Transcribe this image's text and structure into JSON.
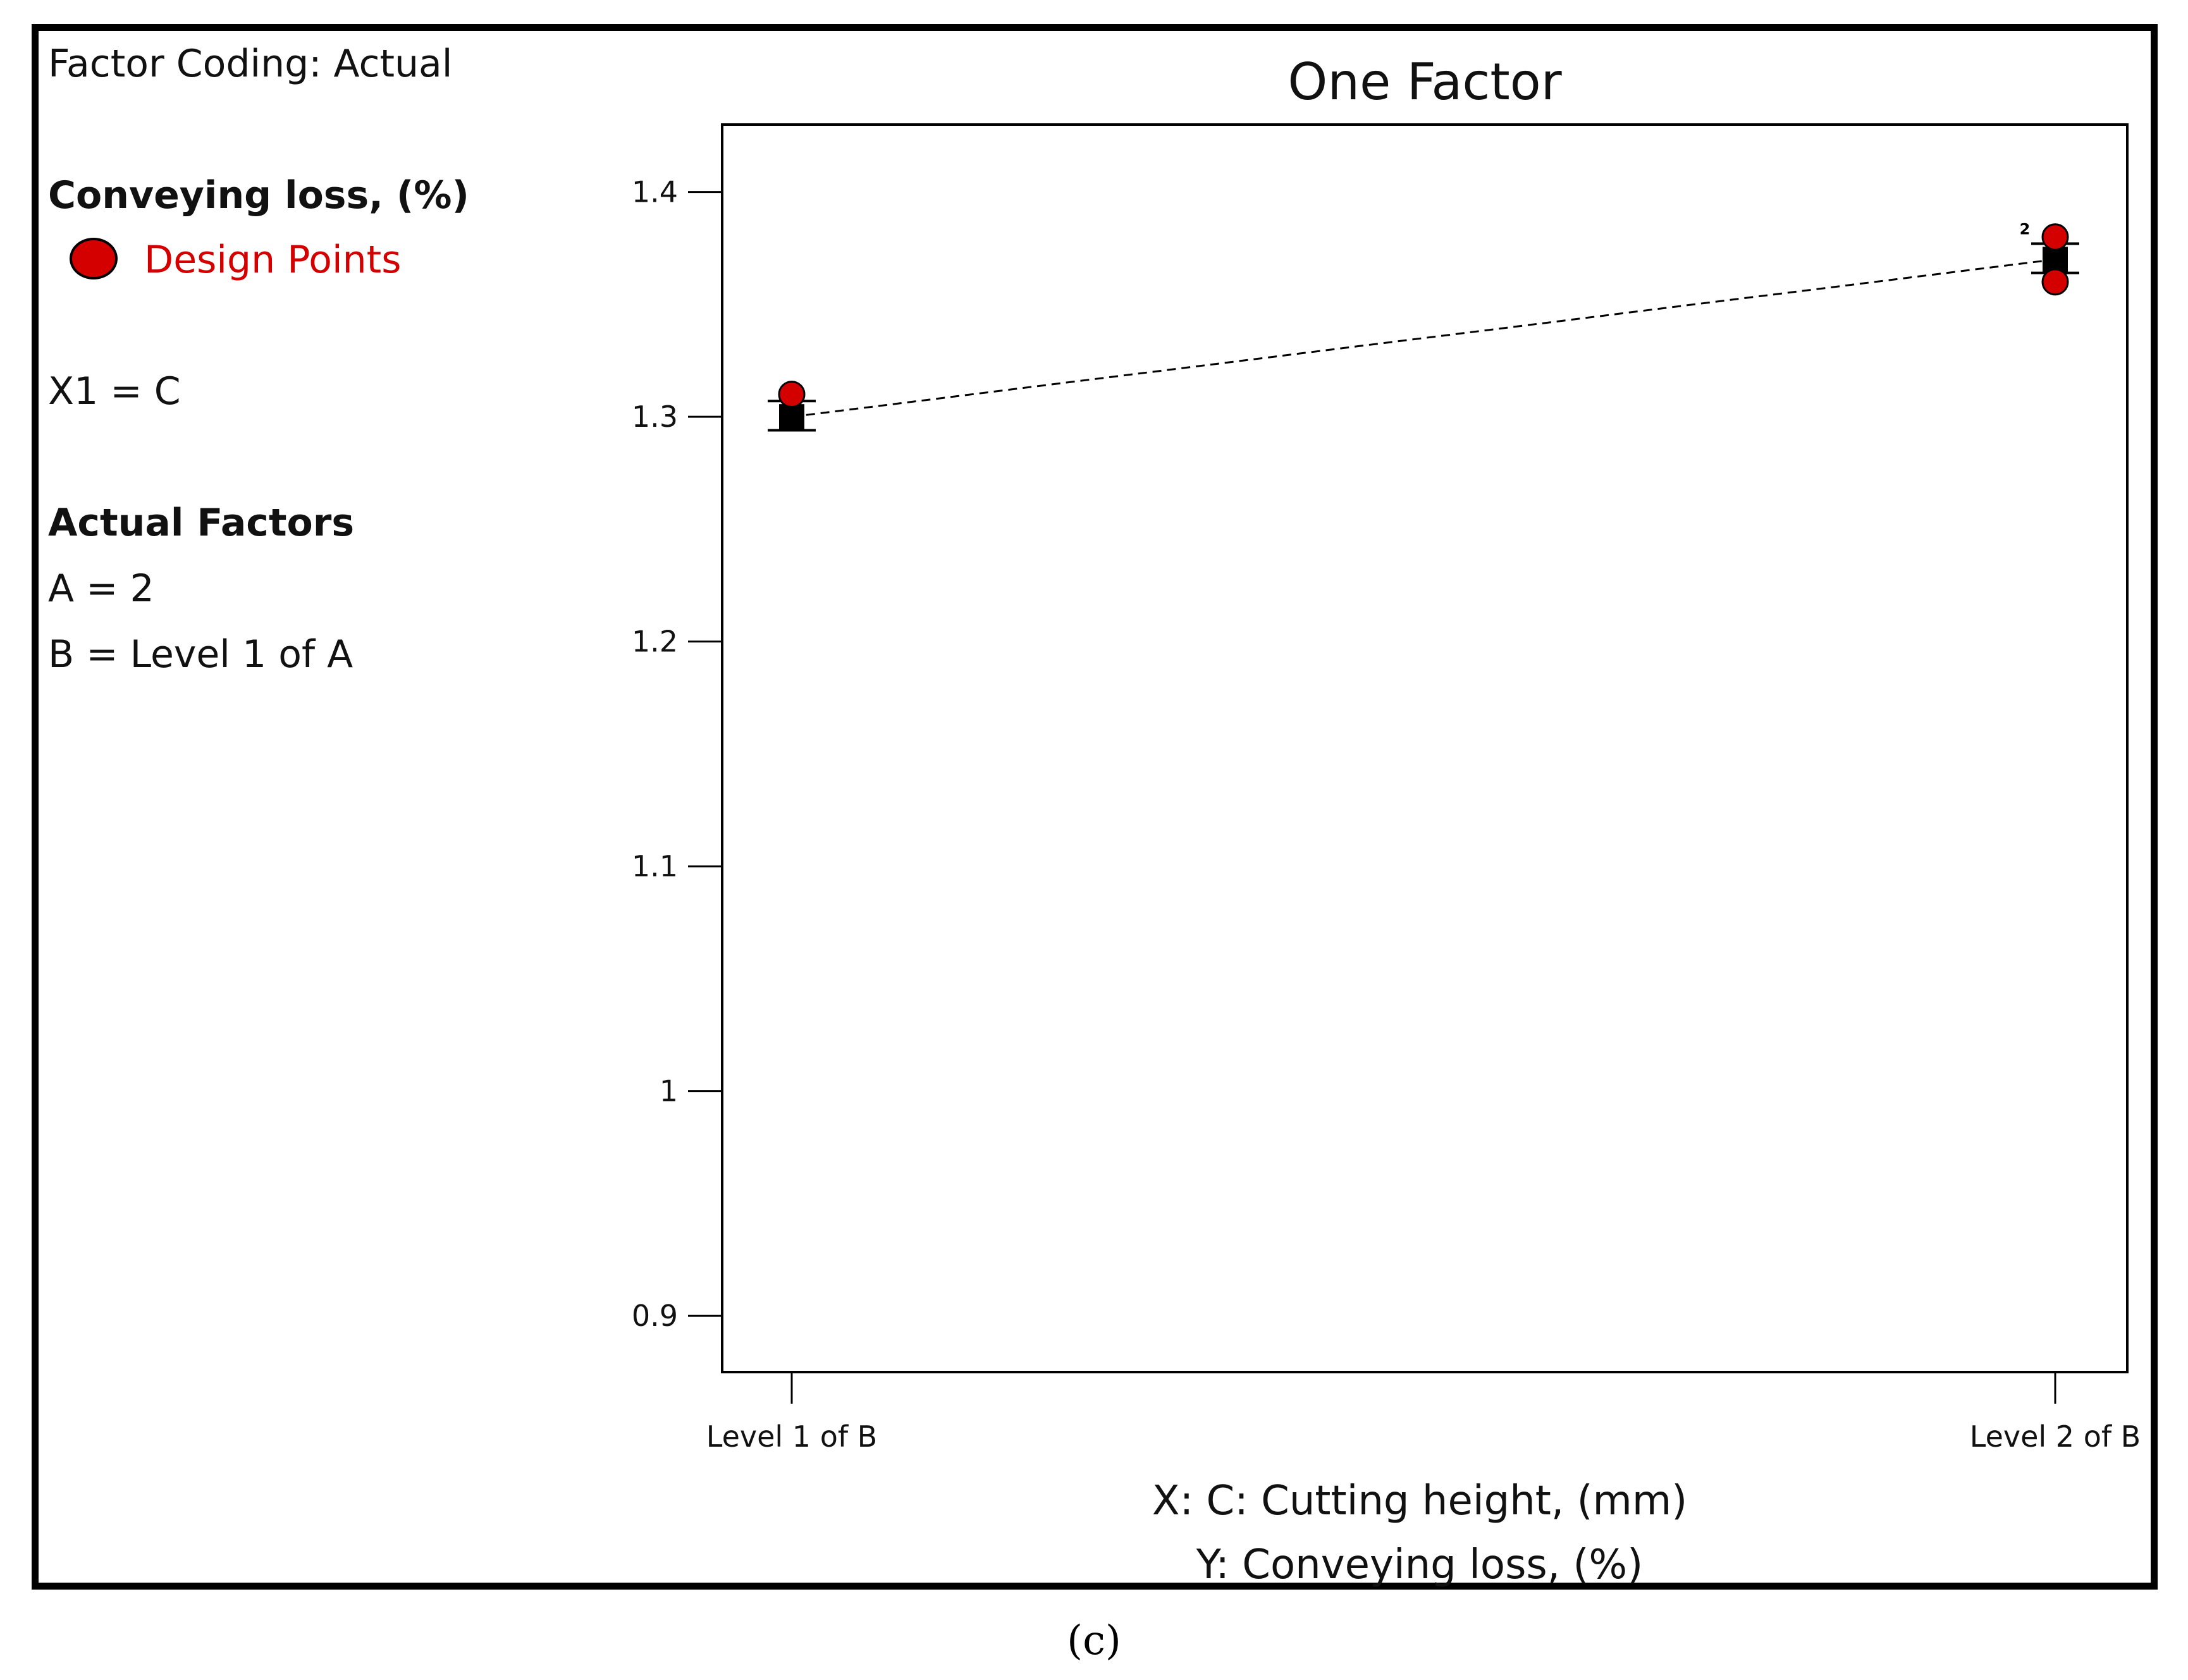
{
  "sidebar": {
    "factor_coding": "Factor Coding: Actual",
    "response_title": "Conveying loss,  (%)",
    "legend_label": "Design Points",
    "x1_assignment": "X1 = C",
    "actual_factors_heading": "Actual Factors",
    "factor_a": "A = 2",
    "factor_b": "B = Level 1 of A"
  },
  "caption": "(c)",
  "colors": {
    "design_point": "#d40000",
    "prediction": "#000000",
    "text": "#111111"
  },
  "chart_data": {
    "type": "scatter",
    "title": "One Factor",
    "xlabel": "X: C: Cutting height,  (mm)",
    "ylabel": "Y: Conveying loss,  (%)",
    "categories": [
      "Level 1 of B",
      "Level 2 of B"
    ],
    "ylim": [
      0.875,
      1.43
    ],
    "yticks": [
      0.9,
      1,
      1.1,
      1.2,
      1.3,
      1.4
    ],
    "ytick_labels": [
      "0.9",
      "1",
      "1.1",
      "1.2",
      "1.3",
      "1.4"
    ],
    "predicted": [
      1.3,
      1.37
    ],
    "interval": [
      [
        1.294,
        1.307
      ],
      [
        1.364,
        1.377
      ]
    ],
    "design_points": [
      {
        "category": 0,
        "y": 1.31,
        "label": ""
      },
      {
        "category": 1,
        "y": 1.38,
        "label": "2"
      },
      {
        "category": 1,
        "y": 1.36,
        "label": ""
      }
    ],
    "grid": false,
    "legend": "left panel"
  }
}
